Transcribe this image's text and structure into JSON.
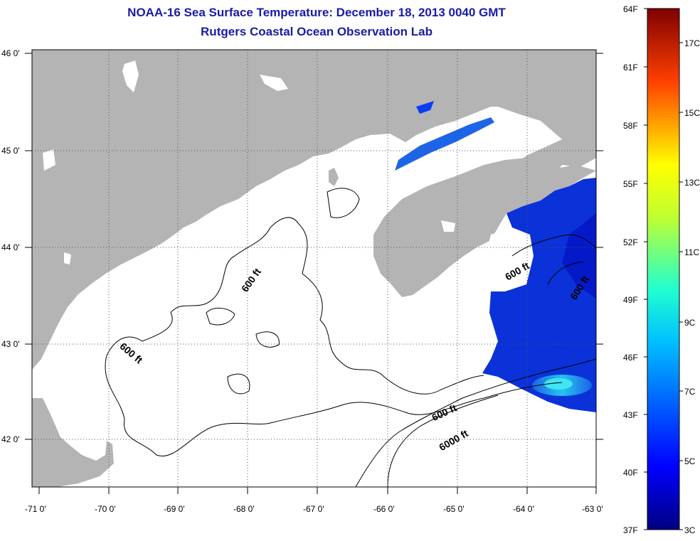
{
  "title": {
    "line1": "NOAA-16 Sea Surface Temperature:  December 18, 2013 0040 GMT",
    "line2": "Rutgers Coastal Ocean Observation Lab"
  },
  "map": {
    "lon_labels": [
      "-71 0'",
      "-70 0'",
      "-69 0'",
      "-68 0'",
      "-67 0'",
      "-66 0'",
      "-65 0'",
      "-64 0'",
      "-63 0'"
    ],
    "lat_labels": [
      "46 0'",
      "45 0'",
      "44 0'",
      "43 0'",
      "42 0'"
    ],
    "lon_range": [
      -71,
      -63
    ],
    "lat_range": [
      41.5,
      46
    ],
    "contour_labels": [
      "600 ft",
      "600 ft",
      "600 ft",
      "600 ft",
      "600 ft",
      "6000 ft"
    ],
    "land_color": "#b4b4b4",
    "cloud_color": "#ffffff"
  },
  "colorbar": {
    "fahrenheit_labels": [
      "64F",
      "61F",
      "58F",
      "55F",
      "52F",
      "49F",
      "46F",
      "43F",
      "40F",
      "37F"
    ],
    "celsius_labels": [
      "17C",
      "15C",
      "13C",
      "11C",
      "9C",
      "7C",
      "5C",
      "3C"
    ],
    "range_f": [
      37,
      64
    ],
    "colormap": "jet"
  }
}
